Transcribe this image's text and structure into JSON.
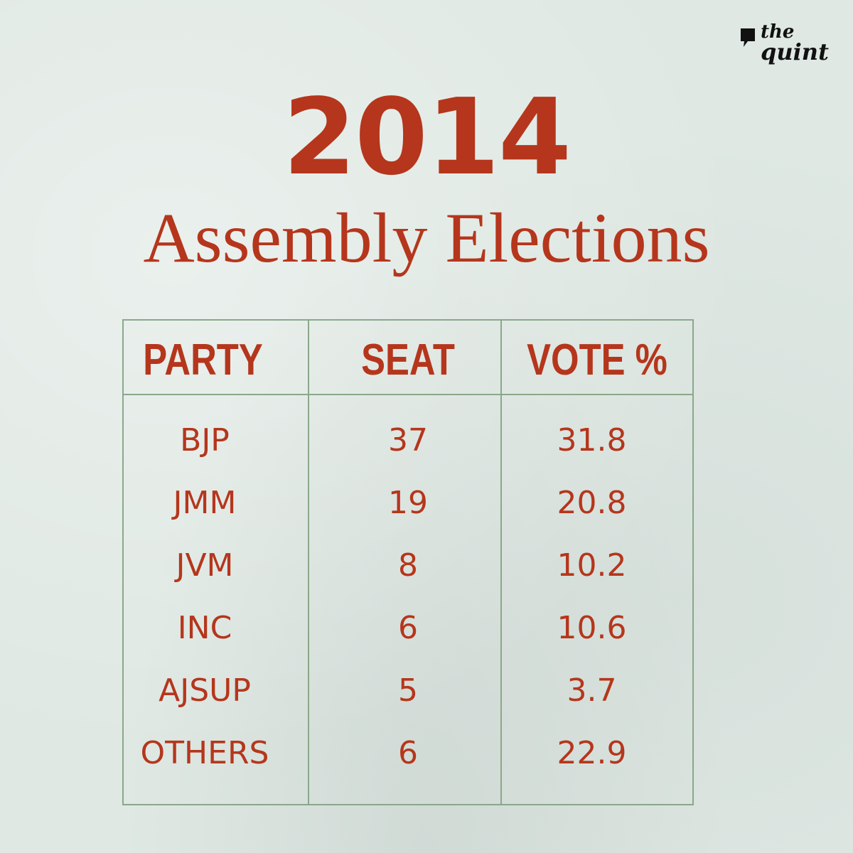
{
  "logo": {
    "line1": "the",
    "line2": "quint"
  },
  "title": "2014",
  "subtitle": "Assembly Elections",
  "colors": {
    "accent": "#b5361c",
    "border": "#8aa88a",
    "background": "#dfe8e3"
  },
  "chart_data": {
    "type": "table",
    "columns": [
      "PARTY",
      "SEAT",
      "VOTE %"
    ],
    "rows": [
      {
        "party": "BJP",
        "seat": "37",
        "vote": "31.8"
      },
      {
        "party": "JMM",
        "seat": "19",
        "vote": "20.8"
      },
      {
        "party": "JVM",
        "seat": "8",
        "vote": "10.2"
      },
      {
        "party": "INC",
        "seat": "6",
        "vote": "10.6"
      },
      {
        "party": "AJSUP",
        "seat": "5",
        "vote": "3.7"
      },
      {
        "party": "OTHERS",
        "seat": "6",
        "vote": "22.9"
      }
    ]
  }
}
